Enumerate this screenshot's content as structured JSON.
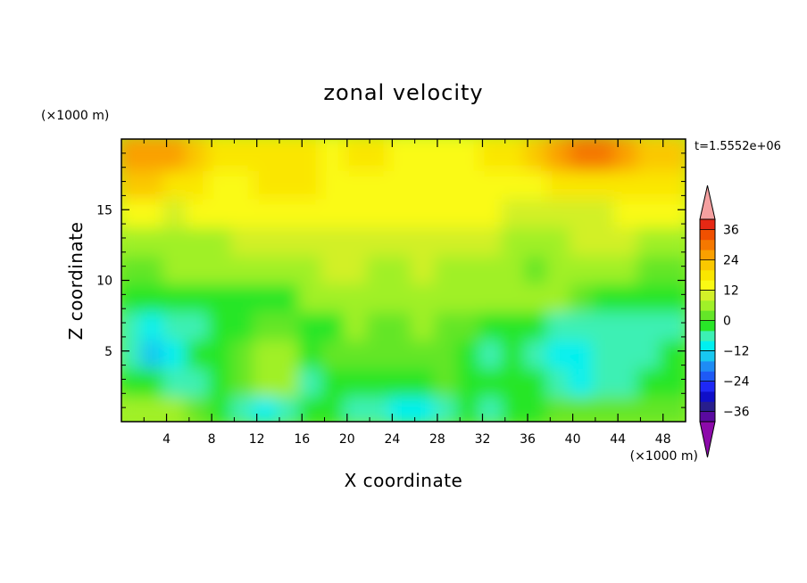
{
  "chart_data": {
    "type": "heatmap",
    "title": "zonal velocity",
    "xlabel": "X coordinate",
    "ylabel": "Z coordinate",
    "x_unit": "(×1000 m)",
    "y_unit": "(×1000 m)",
    "time_label": "t=1.5552e+06",
    "xlim": [
      0,
      50
    ],
    "ylim": [
      0,
      20
    ],
    "x_ticks": [
      4,
      8,
      12,
      16,
      20,
      24,
      28,
      32,
      36,
      40,
      44,
      48
    ],
    "y_ticks": [
      5,
      10,
      15
    ],
    "x_tick_labels": [
      "4",
      "8",
      "12",
      "16",
      "20",
      "24",
      "28",
      "32",
      "36",
      "40",
      "44",
      "48"
    ],
    "y_tick_labels": [
      "5",
      "10",
      "15"
    ],
    "x_cells": [
      1,
      3,
      5,
      7,
      9,
      11,
      13,
      15,
      17,
      19,
      21,
      23,
      25,
      27,
      29,
      31,
      33,
      35,
      37,
      39,
      41,
      43,
      45,
      47,
      49
    ],
    "z_cells": [
      1,
      3,
      5,
      7,
      9,
      11,
      13,
      15,
      17,
      19
    ],
    "values": [
      [
        6,
        6,
        6,
        0,
        -2,
        -8,
        -10,
        -8,
        -2,
        -4,
        -8,
        -6,
        -10,
        -10,
        -8,
        -4,
        -6,
        -2,
        -2,
        0,
        2,
        2,
        0,
        2,
        2
      ],
      [
        -2,
        -4,
        -6,
        -6,
        -4,
        2,
        4,
        6,
        -6,
        -4,
        -2,
        -2,
        -4,
        -2,
        0,
        -2,
        -4,
        -4,
        -2,
        -8,
        -10,
        -6,
        -6,
        -4,
        -2
      ],
      [
        -8,
        -14,
        -10,
        -2,
        -4,
        0,
        6,
        4,
        -4,
        0,
        0,
        0,
        2,
        2,
        0,
        -2,
        -6,
        -4,
        -6,
        -10,
        -10,
        -8,
        -8,
        -6,
        -4
      ],
      [
        -8,
        -10,
        -8,
        -6,
        -2,
        -4,
        2,
        0,
        -2,
        -2,
        4,
        2,
        2,
        4,
        2,
        0,
        -4,
        -2,
        -4,
        -6,
        -6,
        -8,
        -8,
        -6,
        -6
      ],
      [
        -2,
        -4,
        -2,
        -4,
        -2,
        -2,
        -4,
        -2,
        4,
        4,
        4,
        4,
        4,
        4,
        4,
        4,
        4,
        4,
        4,
        4,
        0,
        -2,
        -2,
        -2,
        -2
      ],
      [
        2,
        2,
        4,
        4,
        6,
        4,
        6,
        4,
        6,
        8,
        8,
        6,
        6,
        8,
        6,
        6,
        6,
        4,
        2,
        4,
        6,
        6,
        4,
        2,
        2
      ],
      [
        4,
        4,
        6,
        6,
        6,
        8,
        8,
        8,
        8,
        10,
        10,
        10,
        10,
        10,
        8,
        8,
        8,
        4,
        4,
        6,
        8,
        10,
        8,
        6,
        6
      ],
      [
        12,
        12,
        10,
        12,
        12,
        12,
        12,
        12,
        12,
        12,
        12,
        12,
        12,
        12,
        12,
        12,
        12,
        10,
        8,
        10,
        10,
        10,
        12,
        12,
        12
      ],
      [
        20,
        20,
        18,
        16,
        14,
        14,
        16,
        16,
        16,
        14,
        14,
        14,
        14,
        14,
        14,
        14,
        14,
        14,
        14,
        16,
        16,
        16,
        18,
        18,
        18
      ],
      [
        24,
        26,
        24,
        20,
        18,
        16,
        16,
        16,
        16,
        14,
        16,
        16,
        14,
        14,
        14,
        14,
        16,
        18,
        22,
        26,
        28,
        28,
        24,
        22,
        22
      ]
    ],
    "colorbar": {
      "levels": [
        -40,
        -36,
        -32,
        -28,
        -24,
        -20,
        -16,
        -12,
        -8,
        -4,
        0,
        4,
        8,
        12,
        16,
        20,
        24,
        28,
        32,
        36,
        40
      ],
      "tick_values": [
        -36,
        -24,
        -12,
        0,
        12,
        24,
        36
      ],
      "tick_labels": [
        "−36",
        "−24",
        "−12",
        "0",
        "12",
        "24",
        "36"
      ],
      "colors": [
        "#5a0aa0",
        "#281e8c",
        "#0f0fc8",
        "#1e28f5",
        "#1e5af5",
        "#1e8cf5",
        "#18c8f0",
        "#00f0f0",
        "#3cf0b4",
        "#28e628",
        "#64e628",
        "#a0f028",
        "#d2f028",
        "#fafa14",
        "#fae600",
        "#fac800",
        "#faa000",
        "#f57800",
        "#f05000",
        "#e62814"
      ],
      "under_color": "#8c0aaa",
      "over_color": "#f5a0a0"
    }
  }
}
